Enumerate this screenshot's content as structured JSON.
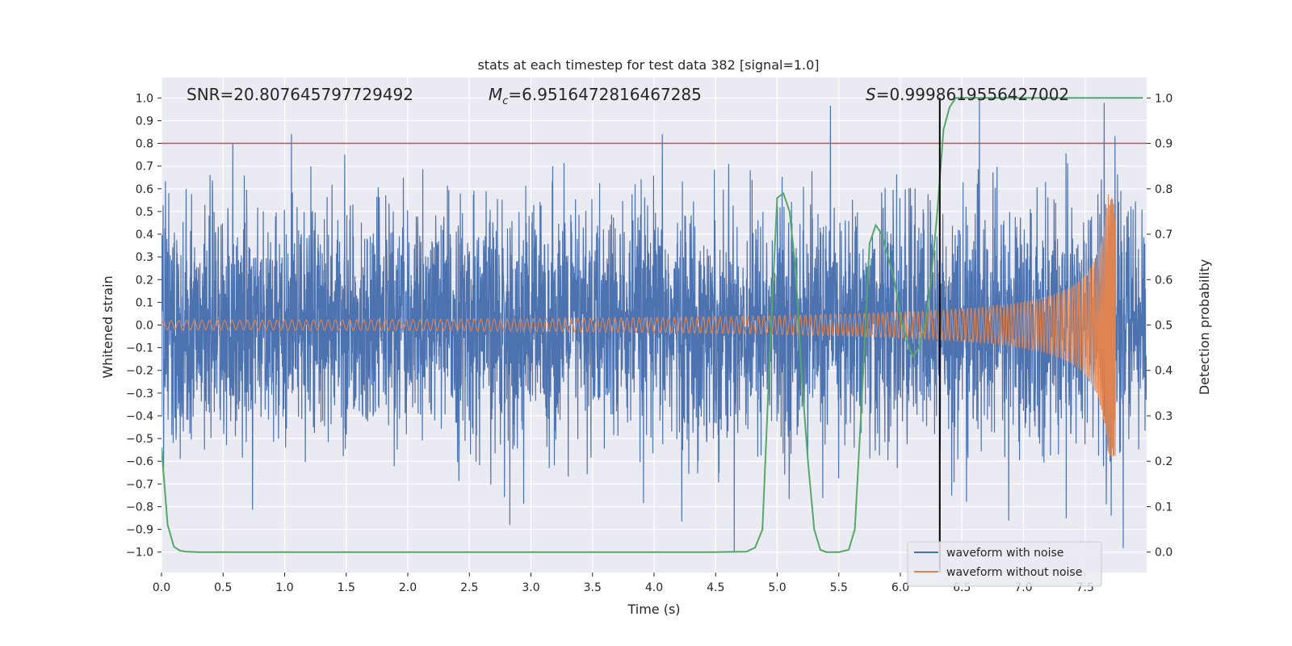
{
  "chart_data": {
    "type": "line",
    "title": "stats at each timestep for test data 382 [signal=1.0]",
    "xlabel": "Time (s)",
    "ylabel_left": "Whitened strain",
    "ylabel_right": "Detection probability",
    "xlim": [
      0.0,
      8.0
    ],
    "ylim_left": [
      -1.09,
      1.09
    ],
    "ylim_right": [
      -0.045,
      1.045
    ],
    "x_ticks": [
      "0.0",
      "0.5",
      "1.0",
      "1.5",
      "2.0",
      "2.5",
      "3.0",
      "3.5",
      "4.0",
      "4.5",
      "5.0",
      "5.5",
      "6.0",
      "6.5",
      "7.0",
      "7.5"
    ],
    "x_tick_values": [
      0.0,
      0.5,
      1.0,
      1.5,
      2.0,
      2.5,
      3.0,
      3.5,
      4.0,
      4.5,
      5.0,
      5.5,
      6.0,
      6.5,
      7.0,
      7.5
    ],
    "left_ticks": [
      "−1.0",
      "−0.9",
      "−0.8",
      "−0.7",
      "−0.6",
      "−0.5",
      "−0.4",
      "−0.3",
      "−0.2",
      "−0.1",
      "0.0",
      "0.1",
      "0.2",
      "0.3",
      "0.4",
      "0.5",
      "0.6",
      "0.7",
      "0.8",
      "0.9",
      "1.0"
    ],
    "left_tick_values": [
      -1.0,
      -0.9,
      -0.8,
      -0.7,
      -0.6,
      -0.5,
      -0.4,
      -0.3,
      -0.2,
      -0.1,
      0.0,
      0.1,
      0.2,
      0.3,
      0.4,
      0.5,
      0.6,
      0.7,
      0.8,
      0.9,
      1.0
    ],
    "right_ticks": [
      "0.0",
      "0.1",
      "0.2",
      "0.3",
      "0.4",
      "0.5",
      "0.6",
      "0.7",
      "0.8",
      "0.9",
      "1.0"
    ],
    "right_tick_values": [
      0.0,
      0.1,
      0.2,
      0.3,
      0.4,
      0.5,
      0.6,
      0.7,
      0.8,
      0.9,
      1.0
    ],
    "annotations": {
      "snr": "SNR=20.807645797729492",
      "mc_symbol": "M",
      "mc_sub": "c",
      "mc_value": "=6.9516472816467285",
      "s_symbol": "S",
      "s_value": "=0.9998619556427002"
    },
    "threshold_line": {
      "y": 0.8,
      "color": "#c44e52"
    },
    "detection_time": 6.32,
    "series": [
      {
        "name": "waveform with noise",
        "color": "#4c72b0",
        "noise_amplitude": 0.26,
        "x_range": [
          0.0,
          8.0
        ]
      },
      {
        "name": "waveform without noise",
        "color": "#dd8452",
        "x_range": [
          0.0,
          7.75
        ],
        "amplitude_start": 0.02,
        "amplitude_peak": 0.58,
        "merger_time": 7.75
      },
      {
        "name": "detection probability",
        "color": "#55a868",
        "x": [
          0.0,
          0.05,
          0.1,
          0.15,
          0.2,
          0.3,
          0.5,
          1.0,
          2.0,
          3.0,
          4.0,
          4.5,
          4.75,
          4.82,
          4.88,
          4.95,
          5.0,
          5.05,
          5.1,
          5.15,
          5.2,
          5.25,
          5.3,
          5.35,
          5.4,
          5.5,
          5.58,
          5.63,
          5.68,
          5.75,
          5.8,
          5.85,
          5.9,
          5.95,
          6.0,
          6.05,
          6.1,
          6.15,
          6.2,
          6.25,
          6.3,
          6.35,
          6.4,
          6.45,
          6.5,
          6.6,
          7.0,
          7.5,
          7.97
        ],
        "values": [
          0.23,
          0.06,
          0.012,
          0.003,
          0.001,
          0.0,
          0.0,
          0.0,
          0.0,
          0.0,
          0.0,
          0.0,
          0.001,
          0.01,
          0.05,
          0.5,
          0.78,
          0.79,
          0.75,
          0.62,
          0.38,
          0.2,
          0.05,
          0.005,
          0.0,
          0.0,
          0.005,
          0.05,
          0.3,
          0.68,
          0.72,
          0.7,
          0.65,
          0.6,
          0.52,
          0.47,
          0.43,
          0.45,
          0.5,
          0.6,
          0.75,
          0.93,
          0.98,
          1.0,
          1.0,
          1.0,
          1.0,
          1.0,
          1.0
        ]
      }
    ],
    "legend": [
      "waveform with noise",
      "waveform without noise"
    ],
    "legend_position": "lower-right",
    "colors": {
      "background": "#eaeaf2",
      "grid": "#ffffff",
      "detection_marker": "#000000"
    }
  }
}
